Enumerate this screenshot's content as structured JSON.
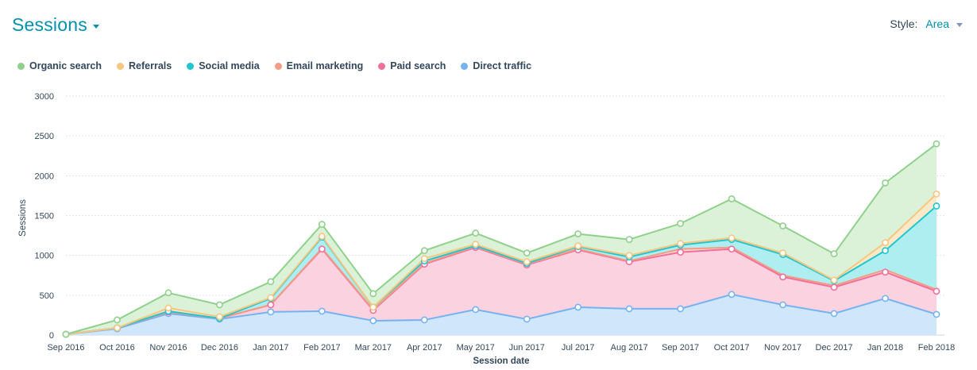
{
  "header": {
    "title": "Sessions",
    "style_label": "Style:",
    "style_value": "Area"
  },
  "legend": [
    {
      "name": "Organic search",
      "color": "#8fd18b"
    },
    {
      "name": "Referrals",
      "color": "#f7c680"
    },
    {
      "name": "Social media",
      "color": "#1fc6cf"
    },
    {
      "name": "Email marketing",
      "color": "#f59b84"
    },
    {
      "name": "Paid search",
      "color": "#f06f9c"
    },
    {
      "name": "Direct traffic",
      "color": "#75b3f0"
    }
  ],
  "chart_data": {
    "type": "area",
    "stacked": true,
    "xlabel": "Session date",
    "ylabel": "Sessions",
    "ylim": [
      0,
      3000
    ],
    "yticks": [
      0,
      500,
      1000,
      1500,
      2000,
      2500,
      3000
    ],
    "grid": true,
    "legend_position": "top-left",
    "categories": [
      "Sep 2016",
      "Oct 2016",
      "Nov 2016",
      "Dec 2016",
      "Jan 2017",
      "Feb 2017",
      "Mar 2017",
      "Apr 2017",
      "May 2017",
      "Jun 2017",
      "Jul 2017",
      "Aug 2017",
      "Sep 2017",
      "Oct 2017",
      "Nov 2017",
      "Dec 2017",
      "Jan 2018",
      "Feb 2018"
    ],
    "series": [
      {
        "name": "Direct traffic",
        "color": "#75b3f0",
        "fill": "#cfe6fb",
        "values": [
          10,
          80,
          270,
          200,
          290,
          300,
          180,
          190,
          320,
          200,
          350,
          330,
          330,
          510,
          380,
          270,
          460,
          260
        ]
      },
      {
        "name": "Paid search",
        "color": "#f06f9c",
        "fill": "#fbd2e0",
        "values": [
          0,
          10,
          20,
          10,
          90,
          780,
          130,
          700,
          780,
          680,
          720,
          590,
          710,
          570,
          350,
          330,
          330,
          290
        ]
      },
      {
        "name": "Email marketing",
        "color": "#f59b84",
        "fill": "#fcd9cf",
        "values": [
          0,
          0,
          0,
          0,
          0,
          10,
          10,
          10,
          10,
          10,
          10,
          10,
          40,
          20,
          20,
          20,
          30,
          20
        ]
      },
      {
        "name": "Social media",
        "color": "#1fc6cf",
        "fill": "#aeeef0",
        "values": [
          0,
          0,
          10,
          0,
          80,
          140,
          30,
          30,
          10,
          10,
          30,
          50,
          50,
          100,
          260,
          60,
          240,
          1050
        ]
      },
      {
        "name": "Referrals",
        "color": "#f7c680",
        "fill": "#fde9c8",
        "values": [
          0,
          0,
          40,
          20,
          10,
          10,
          0,
          30,
          20,
          20,
          10,
          20,
          20,
          20,
          20,
          10,
          100,
          150
        ]
      },
      {
        "name": "Organic search",
        "color": "#8fd18b",
        "fill": "#dbf2d9",
        "values": [
          0,
          100,
          190,
          150,
          200,
          150,
          170,
          100,
          140,
          110,
          150,
          200,
          250,
          490,
          340,
          330,
          750,
          630
        ]
      }
    ]
  }
}
